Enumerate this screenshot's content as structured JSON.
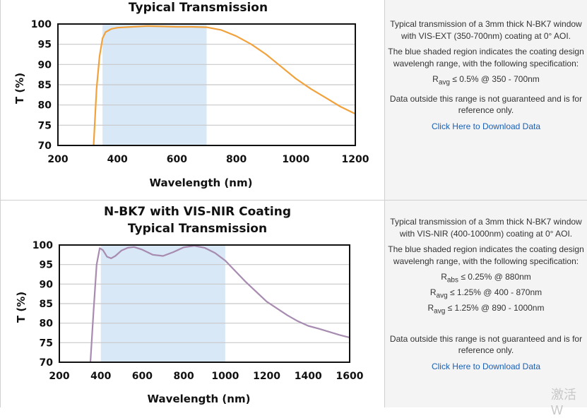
{
  "chart_data": [
    {
      "type": "line",
      "title_lines": [
        "Typical Transmission"
      ],
      "xlabel": "Wavelength (nm)",
      "ylabel": "T (%)",
      "xlim": [
        200,
        1200
      ],
      "ylim": [
        70,
        100
      ],
      "xticks": [
        "200",
        "400",
        "600",
        "800",
        "1000",
        "1200"
      ],
      "yticks": [
        "70",
        "75",
        "80",
        "85",
        "90",
        "95",
        "100"
      ],
      "grid": true,
      "shaded_region": [
        350,
        700
      ],
      "shade_color": "#d8e8f7",
      "series": [
        {
          "color": "#f2a23c",
          "x": [
            320,
            330,
            340,
            350,
            360,
            380,
            400,
            450,
            500,
            550,
            600,
            650,
            700,
            750,
            800,
            850,
            900,
            950,
            1000,
            1050,
            1100,
            1150,
            1200
          ],
          "y": [
            70,
            84,
            92,
            96.5,
            98,
            98.8,
            99.1,
            99.3,
            99.5,
            99.4,
            99.3,
            99.3,
            99.2,
            98.5,
            97,
            95,
            92.5,
            89.5,
            86.5,
            84,
            81.8,
            79.6,
            77.8
          ]
        }
      ]
    },
    {
      "type": "line",
      "title_lines": [
        "N-BK7 with VIS-NIR Coating",
        "Typical Transmission"
      ],
      "xlabel": "Wavelength (nm)",
      "ylabel": "T (%)",
      "xlim": [
        200,
        1600
      ],
      "ylim": [
        70,
        100
      ],
      "xticks": [
        "200",
        "400",
        "600",
        "800",
        "1000",
        "1200",
        "1400",
        "1600"
      ],
      "yticks": [
        "70",
        "75",
        "80",
        "85",
        "90",
        "95",
        "100"
      ],
      "grid": true,
      "shaded_region": [
        400,
        1000
      ],
      "shade_color": "#d8e8f7",
      "series": [
        {
          "color": "#a78bb0",
          "x": [
            350,
            365,
            380,
            395,
            410,
            430,
            450,
            470,
            500,
            530,
            560,
            600,
            650,
            700,
            750,
            800,
            850,
            900,
            950,
            1000,
            1100,
            1200,
            1300,
            1350,
            1400,
            1450,
            1500,
            1550,
            1600
          ],
          "y": [
            70,
            83,
            95,
            99.2,
            98.7,
            97,
            96.6,
            97.2,
            98.6,
            99.3,
            99.5,
            98.8,
            97.5,
            97.2,
            98.2,
            99.4,
            99.8,
            99.3,
            98,
            96,
            90.5,
            85.5,
            82,
            80.5,
            79.3,
            78.6,
            77.8,
            77,
            76.3
          ]
        }
      ]
    }
  ],
  "descriptions": [
    {
      "intro": "Typical transmission of a 3mm thick N-BK7 window with VIS-EXT (350-700nm) coating at 0° AOI.",
      "shade_note": "The blue shaded region indicates the coating design wavelengh range, with the following specification:",
      "specs": [
        {
          "sym": "R",
          "sub": "avg",
          "text": " ≤ 0.5% @ 350 - 700nm"
        }
      ],
      "disclaimer": "Data outside this range is not guaranteed and is for reference only.",
      "link": "Click Here to Download Data"
    },
    {
      "intro": "Typical transmission of a 3mm thick N-BK7 window with VIS-NIR (400-1000nm) coating at 0° AOI.",
      "shade_note": "The blue shaded region indicates the coating design wavelengh range, with the following specification:",
      "specs": [
        {
          "sym": "R",
          "sub": "abs",
          "text": " ≤ 0.25% @ 880nm"
        },
        {
          "sym": "R",
          "sub": "avg",
          "text": " ≤ 1.25% @ 400 - 870nm"
        },
        {
          "sym": "R",
          "sub": "avg",
          "text": " ≤ 1.25% @ 890 - 1000nm"
        }
      ],
      "disclaimer": "Data outside this range is not guaranteed and is for reference only.",
      "link": "Click Here to Download Data"
    }
  ],
  "watermark": "激活 W"
}
